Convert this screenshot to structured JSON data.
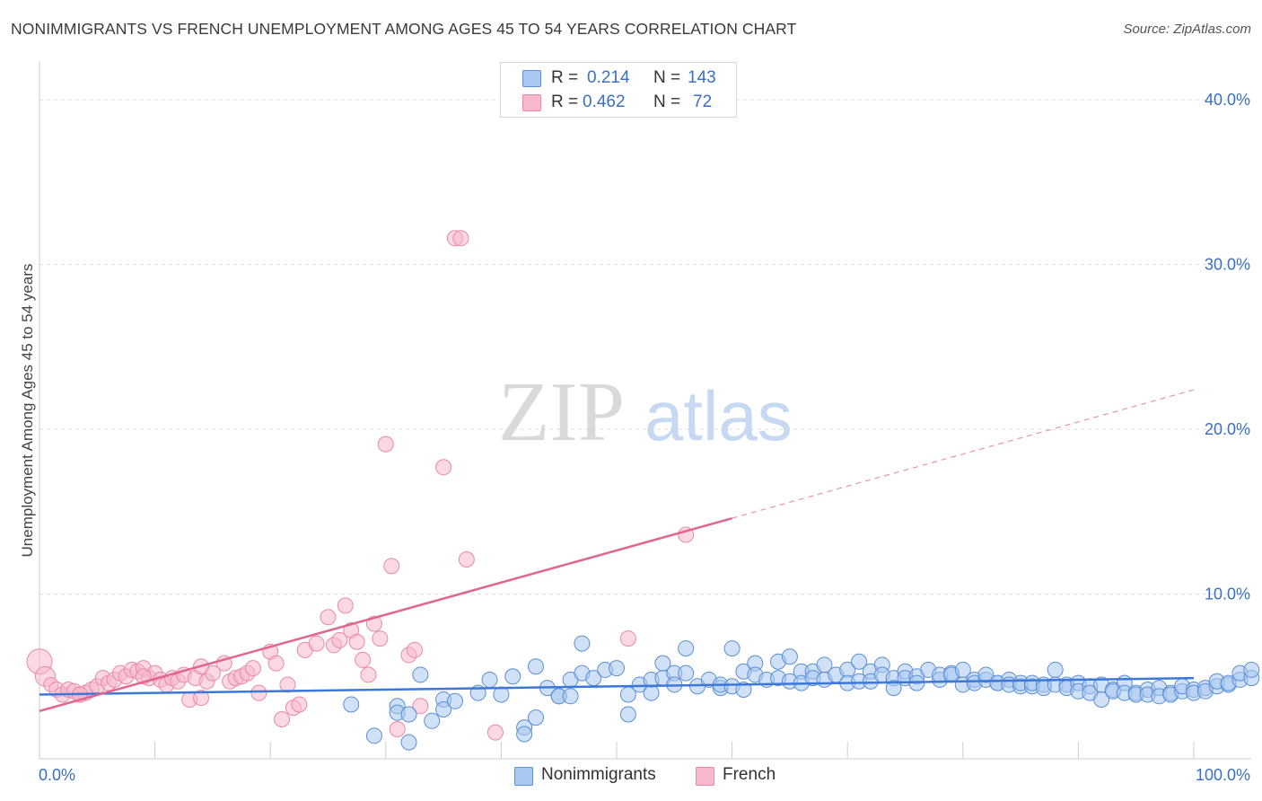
{
  "header": {
    "title": "NONIMMIGRANTS VS FRENCH UNEMPLOYMENT AMONG AGES 45 TO 54 YEARS CORRELATION CHART",
    "source": "Source: ZipAtlas.com"
  },
  "watermark": {
    "zip": "ZIP",
    "atlas": "atlas"
  },
  "legend": {
    "rows": [
      {
        "r_label": "R =",
        "r_value": "0.214",
        "n_label": "N =",
        "n_value": "143",
        "color": "#a9c8f0"
      },
      {
        "r_label": "R =",
        "r_value": "0.462",
        "n_label": "N =",
        "n_value": "72",
        "color": "#f7b8cb"
      }
    ]
  },
  "bottom_legend": [
    {
      "label": "Nonimmigrants",
      "color": "#a9c8f0"
    },
    {
      "label": "French",
      "color": "#f7b8cb"
    }
  ],
  "colors": {
    "blue_fill": "#a9c8f0",
    "blue_stroke": "#5b8fd6",
    "blue_line": "#3c78d8",
    "pink_fill": "#f7b8cb",
    "pink_stroke": "#e98aa6",
    "pink_line": "#e06690",
    "axis_text": "#3a6fc4",
    "grid": "#dddddd"
  },
  "chart_data": {
    "type": "scatter",
    "title": "NONIMMIGRANTS VS FRENCH UNEMPLOYMENT AMONG AGES 45 TO 54 YEARS CORRELATION CHART",
    "ylabel": "Unemployment Among Ages 45 to 54 years",
    "xlabel": "",
    "xlim": [
      0,
      100
    ],
    "ylim": [
      0,
      40
    ],
    "x_tick_labels": [
      "0.0%",
      "100.0%"
    ],
    "y_ticks": [
      10,
      20,
      30,
      40
    ],
    "y_tick_labels": [
      "10.0%",
      "20.0%",
      "30.0%",
      "40.0%"
    ],
    "grid": true,
    "legend_position": "top-center",
    "series": [
      {
        "name": "Nonimmigrants",
        "r": 0.214,
        "n": 143,
        "trend": {
          "x": [
            0,
            100
          ],
          "y": [
            3.9,
            4.9
          ]
        },
        "points": [
          [
            27,
            3.3
          ],
          [
            29,
            1.4
          ],
          [
            31,
            3.2
          ],
          [
            31,
            2.8
          ],
          [
            32,
            2.7
          ],
          [
            32,
            1.0
          ],
          [
            33,
            5.1
          ],
          [
            34,
            2.3
          ],
          [
            35,
            3.6
          ],
          [
            35,
            3.0
          ],
          [
            36,
            3.5
          ],
          [
            38,
            4.0
          ],
          [
            39,
            4.8
          ],
          [
            40,
            3.9
          ],
          [
            41,
            5.0
          ],
          [
            42,
            1.9
          ],
          [
            42,
            1.5
          ],
          [
            43,
            2.5
          ],
          [
            43,
            5.6
          ],
          [
            44,
            4.3
          ],
          [
            45,
            3.8
          ],
          [
            45,
            3.8
          ],
          [
            46,
            4.8
          ],
          [
            46,
            3.8
          ],
          [
            47,
            7.0
          ],
          [
            47,
            5.2
          ],
          [
            48,
            4.9
          ],
          [
            49,
            5.4
          ],
          [
            50,
            5.5
          ],
          [
            51,
            2.7
          ],
          [
            51,
            3.9
          ],
          [
            52,
            4.5
          ],
          [
            53,
            4.8
          ],
          [
            53,
            4.0
          ],
          [
            54,
            5.8
          ],
          [
            54,
            4.9
          ],
          [
            55,
            5.2
          ],
          [
            55,
            4.5
          ],
          [
            56,
            6.7
          ],
          [
            56,
            5.2
          ],
          [
            57,
            4.4
          ],
          [
            58,
            4.8
          ],
          [
            59,
            4.3
          ],
          [
            59,
            4.5
          ],
          [
            60,
            4.4
          ],
          [
            60,
            6.7
          ],
          [
            61,
            4.2
          ],
          [
            61,
            5.3
          ],
          [
            62,
            5.8
          ],
          [
            62,
            5.1
          ],
          [
            63,
            4.8
          ],
          [
            64,
            5.9
          ],
          [
            64,
            4.9
          ],
          [
            65,
            6.2
          ],
          [
            65,
            4.7
          ],
          [
            66,
            5.3
          ],
          [
            66,
            4.6
          ],
          [
            67,
            5.3
          ],
          [
            67,
            4.9
          ],
          [
            68,
            5.7
          ],
          [
            68,
            4.8
          ],
          [
            69,
            5.1
          ],
          [
            70,
            5.4
          ],
          [
            70,
            4.6
          ],
          [
            71,
            5.9
          ],
          [
            71,
            4.7
          ],
          [
            72,
            5.3
          ],
          [
            72,
            4.7
          ],
          [
            73,
            5.7
          ],
          [
            73,
            5.1
          ],
          [
            74,
            4.9
          ],
          [
            74,
            4.3
          ],
          [
            75,
            5.3
          ],
          [
            75,
            4.9
          ],
          [
            76,
            5.0
          ],
          [
            76,
            4.6
          ],
          [
            77,
            5.4
          ],
          [
            78,
            4.8
          ],
          [
            78,
            5.1
          ],
          [
            79,
            5.2
          ],
          [
            79,
            5.1
          ],
          [
            80,
            4.5
          ],
          [
            80,
            5.4
          ],
          [
            81,
            4.8
          ],
          [
            81,
            4.6
          ],
          [
            82,
            4.8
          ],
          [
            82,
            5.1
          ],
          [
            83,
            4.6
          ],
          [
            83,
            4.6
          ],
          [
            84,
            4.8
          ],
          [
            84,
            4.5
          ],
          [
            85,
            4.4
          ],
          [
            85,
            4.6
          ],
          [
            86,
            4.4
          ],
          [
            86,
            4.6
          ],
          [
            87,
            4.5
          ],
          [
            87,
            4.3
          ],
          [
            88,
            4.5
          ],
          [
            88,
            5.4
          ],
          [
            89,
            4.5
          ],
          [
            89,
            4.3
          ],
          [
            90,
            4.6
          ],
          [
            90,
            4.1
          ],
          [
            91,
            4.4
          ],
          [
            91,
            4.0
          ],
          [
            92,
            3.6
          ],
          [
            92,
            4.5
          ],
          [
            93,
            4.2
          ],
          [
            93,
            4.1
          ],
          [
            94,
            4.6
          ],
          [
            94,
            4.0
          ],
          [
            95,
            4.0
          ],
          [
            95,
            3.9
          ],
          [
            96,
            4.2
          ],
          [
            96,
            3.9
          ],
          [
            97,
            4.3
          ],
          [
            97,
            3.8
          ],
          [
            98,
            4.0
          ],
          [
            98,
            3.9
          ],
          [
            99,
            4.1
          ],
          [
            99,
            4.4
          ],
          [
            100,
            4.2
          ],
          [
            100,
            4.0
          ],
          [
            101,
            4.3
          ],
          [
            101,
            4.1
          ],
          [
            102,
            4.4
          ],
          [
            102,
            4.7
          ],
          [
            103,
            4.5
          ],
          [
            103,
            4.6
          ],
          [
            104,
            4.8
          ],
          [
            104,
            5.2
          ],
          [
            105,
            4.9
          ],
          [
            105,
            5.4
          ]
        ]
      },
      {
        "name": "French",
        "r": 0.462,
        "n": 72,
        "trend": {
          "x": [
            0,
            60
          ],
          "y": [
            2.9,
            14.6
          ],
          "extrapolated": {
            "x": [
              60,
              100
            ],
            "y": [
              14.6,
              22.4
            ]
          }
        },
        "points": [
          [
            0,
            5.9
          ],
          [
            0.5,
            5.0
          ],
          [
            1,
            4.5
          ],
          [
            1.5,
            4.2
          ],
          [
            2,
            3.9
          ],
          [
            2.5,
            4.2
          ],
          [
            3,
            4.1
          ],
          [
            3.5,
            3.9
          ],
          [
            4,
            4.0
          ],
          [
            4.5,
            4.2
          ],
          [
            5,
            4.4
          ],
          [
            5.5,
            4.9
          ],
          [
            6,
            4.6
          ],
          [
            6.5,
            4.8
          ],
          [
            7,
            5.2
          ],
          [
            7.5,
            5.0
          ],
          [
            8,
            5.4
          ],
          [
            8.5,
            5.3
          ],
          [
            9,
            5.5
          ],
          [
            9.5,
            4.9
          ],
          [
            10,
            5.2
          ],
          [
            10.5,
            4.8
          ],
          [
            11,
            4.5
          ],
          [
            11.5,
            4.9
          ],
          [
            12,
            4.7
          ],
          [
            12.5,
            5.1
          ],
          [
            13,
            3.6
          ],
          [
            13.5,
            4.9
          ],
          [
            14,
            3.7
          ],
          [
            14.5,
            4.7
          ],
          [
            15,
            5.2
          ],
          [
            16,
            5.8
          ],
          [
            16.5,
            4.7
          ],
          [
            17,
            4.9
          ],
          [
            17.5,
            5.0
          ],
          [
            18,
            5.2
          ],
          [
            18.5,
            5.5
          ],
          [
            19,
            4.0
          ],
          [
            20,
            6.5
          ],
          [
            20.5,
            5.8
          ],
          [
            21,
            2.4
          ],
          [
            21.5,
            4.5
          ],
          [
            22,
            3.1
          ],
          [
            22.5,
            3.3
          ],
          [
            23,
            6.6
          ],
          [
            24,
            7.0
          ],
          [
            25,
            8.6
          ],
          [
            25.5,
            6.9
          ],
          [
            26,
            7.2
          ],
          [
            26.5,
            9.3
          ],
          [
            27,
            7.8
          ],
          [
            27.5,
            7.1
          ],
          [
            28,
            6.0
          ],
          [
            28.5,
            5.1
          ],
          [
            29,
            8.2
          ],
          [
            29.5,
            7.3
          ],
          [
            30,
            19.1
          ],
          [
            30.5,
            11.7
          ],
          [
            31,
            1.8
          ],
          [
            32,
            6.3
          ],
          [
            32.5,
            6.6
          ],
          [
            33,
            3.2
          ],
          [
            35,
            17.7
          ],
          [
            36,
            31.6
          ],
          [
            36.5,
            31.6
          ],
          [
            37,
            12.1
          ],
          [
            39.5,
            1.6
          ],
          [
            51,
            7.3
          ],
          [
            56,
            13.6
          ],
          [
            14,
            5.6
          ],
          [
            3.5,
            3.9
          ],
          [
            9,
            5.0
          ]
        ]
      }
    ]
  }
}
